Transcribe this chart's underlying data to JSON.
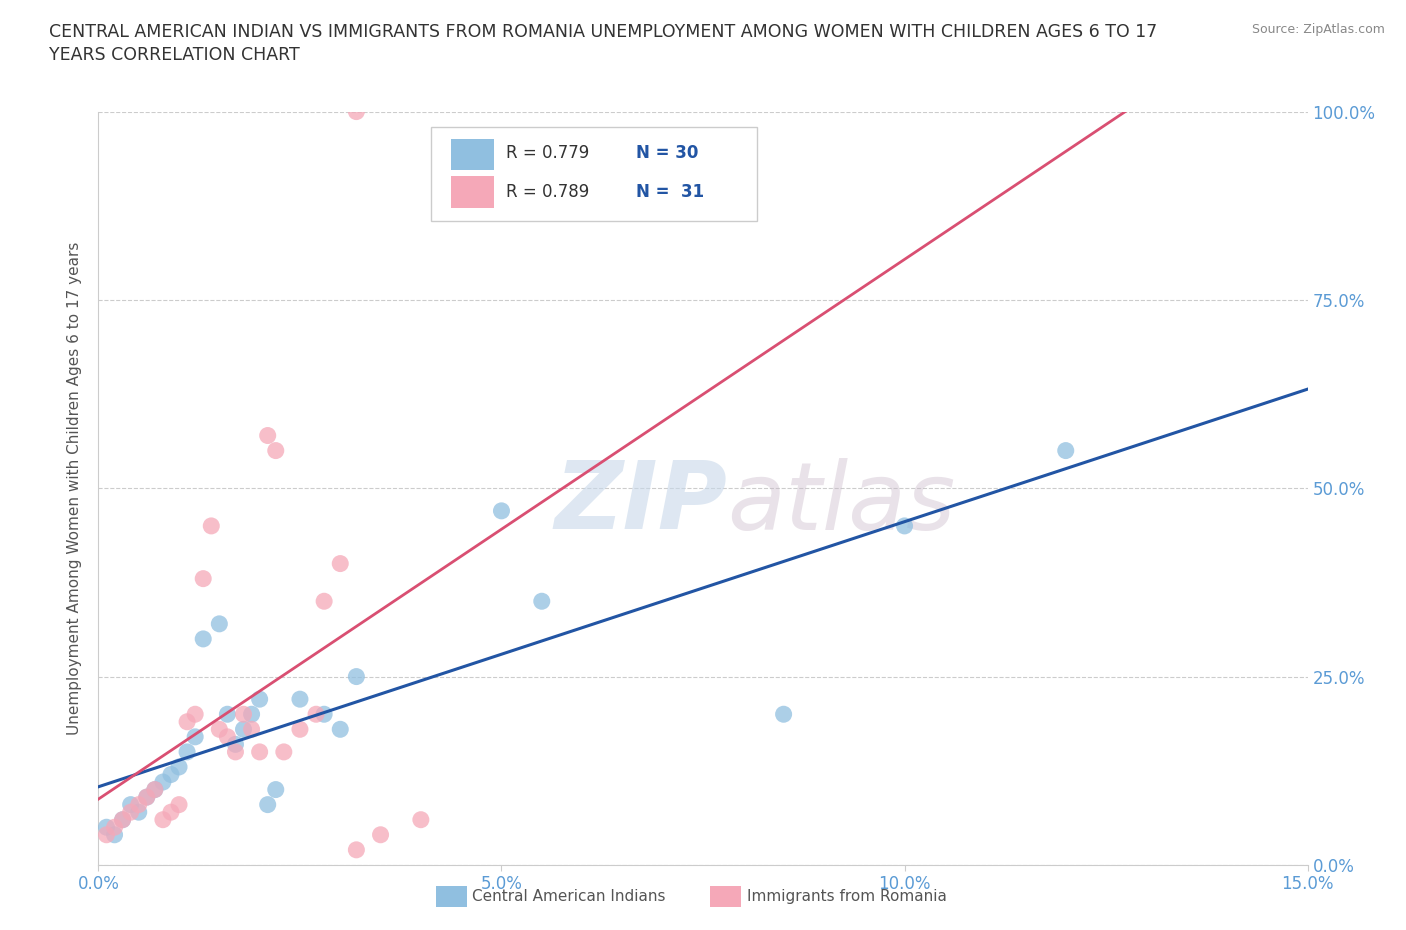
{
  "title_line1": "CENTRAL AMERICAN INDIAN VS IMMIGRANTS FROM ROMANIA UNEMPLOYMENT AMONG WOMEN WITH CHILDREN AGES 6 TO 17",
  "title_line2": "YEARS CORRELATION CHART",
  "source": "Source: ZipAtlas.com",
  "ylabel": "Unemployment Among Women with Children Ages 6 to 17 years",
  "xlim": [
    0,
    0.15
  ],
  "ylim": [
    0,
    1.0
  ],
  "xticks": [
    0.0,
    0.05,
    0.1,
    0.15
  ],
  "xtick_labels": [
    "0.0%",
    "5.0%",
    "10.0%",
    "15.0%"
  ],
  "yticks": [
    0.0,
    0.25,
    0.5,
    0.75,
    1.0
  ],
  "ytick_labels": [
    "0.0%",
    "25.0%",
    "50.0%",
    "75.0%",
    "100.0%"
  ],
  "grid_color": "#cccccc",
  "background_color": "#ffffff",
  "watermark_zip": "ZIP",
  "watermark_atlas": "atlas",
  "legend_r1": "R = 0.779",
  "legend_n1": "N = 30",
  "legend_r2": "R = 0.789",
  "legend_n2": "N =  31",
  "color_blue": "#90bfe0",
  "color_pink": "#f5a8b8",
  "line_color_blue": "#2255a4",
  "line_color_pink": "#d94f72",
  "label_blue": "Central American Indians",
  "label_pink": "Immigrants from Romania",
  "ytick_color": "#5b9bd5",
  "text_dark": "#333333",
  "text_r_color": "#333333",
  "text_n_color": "#2255a4",
  "blue_x": [
    0.001,
    0.002,
    0.003,
    0.004,
    0.005,
    0.006,
    0.007,
    0.008,
    0.009,
    0.01,
    0.011,
    0.012,
    0.013,
    0.015,
    0.016,
    0.017,
    0.018,
    0.019,
    0.02,
    0.021,
    0.022,
    0.025,
    0.028,
    0.03,
    0.032,
    0.05,
    0.055,
    0.085,
    0.1,
    0.12
  ],
  "blue_y": [
    0.05,
    0.04,
    0.06,
    0.08,
    0.07,
    0.09,
    0.1,
    0.11,
    0.12,
    0.13,
    0.15,
    0.17,
    0.3,
    0.32,
    0.2,
    0.16,
    0.18,
    0.2,
    0.22,
    0.08,
    0.1,
    0.22,
    0.2,
    0.18,
    0.25,
    0.47,
    0.35,
    0.2,
    0.45,
    0.55
  ],
  "pink_x": [
    0.001,
    0.002,
    0.003,
    0.004,
    0.005,
    0.006,
    0.007,
    0.008,
    0.009,
    0.01,
    0.011,
    0.012,
    0.013,
    0.014,
    0.015,
    0.016,
    0.017,
    0.018,
    0.019,
    0.02,
    0.021,
    0.022,
    0.023,
    0.025,
    0.027,
    0.028,
    0.03,
    0.032,
    0.035,
    0.04,
    0.032
  ],
  "pink_y": [
    0.04,
    0.05,
    0.06,
    0.07,
    0.08,
    0.09,
    0.1,
    0.06,
    0.07,
    0.08,
    0.19,
    0.2,
    0.38,
    0.45,
    0.18,
    0.17,
    0.15,
    0.2,
    0.18,
    0.15,
    0.57,
    0.55,
    0.15,
    0.18,
    0.2,
    0.35,
    0.4,
    0.02,
    0.04,
    0.06,
    1.0
  ]
}
